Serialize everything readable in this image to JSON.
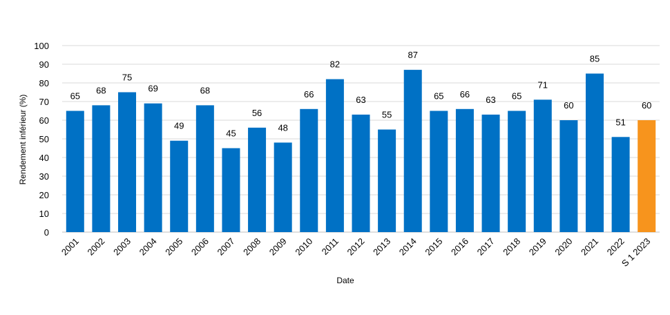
{
  "chart_data": {
    "type": "bar",
    "categories": [
      "2001",
      "2002",
      "2003",
      "2004",
      "2005",
      "2006",
      "2007",
      "2008",
      "2009",
      "2010",
      "2011",
      "2012",
      "2013",
      "2014",
      "2015",
      "2016",
      "2017",
      "2018",
      "2019",
      "2020",
      "2021",
      "2022",
      "S 1 2023"
    ],
    "series": [
      {
        "values": [
          65,
          68,
          75,
          69,
          49,
          68,
          45,
          56,
          48,
          66,
          82,
          63,
          55,
          87,
          65,
          66,
          63,
          65,
          71,
          60,
          85,
          51,
          60
        ]
      }
    ],
    "title": "",
    "xlabel": "Date",
    "ylabel": "Rendement inférieur (%)",
    "ylim": [
      0,
      100
    ],
    "yticks": [
      0,
      10,
      20,
      30,
      40,
      50,
      60,
      70,
      80,
      90,
      100
    ],
    "grid": true,
    "legend": "none",
    "colors": {
      "default": "#0071c5",
      "highlight": "#f7941d"
    },
    "highlight_index": 22
  }
}
